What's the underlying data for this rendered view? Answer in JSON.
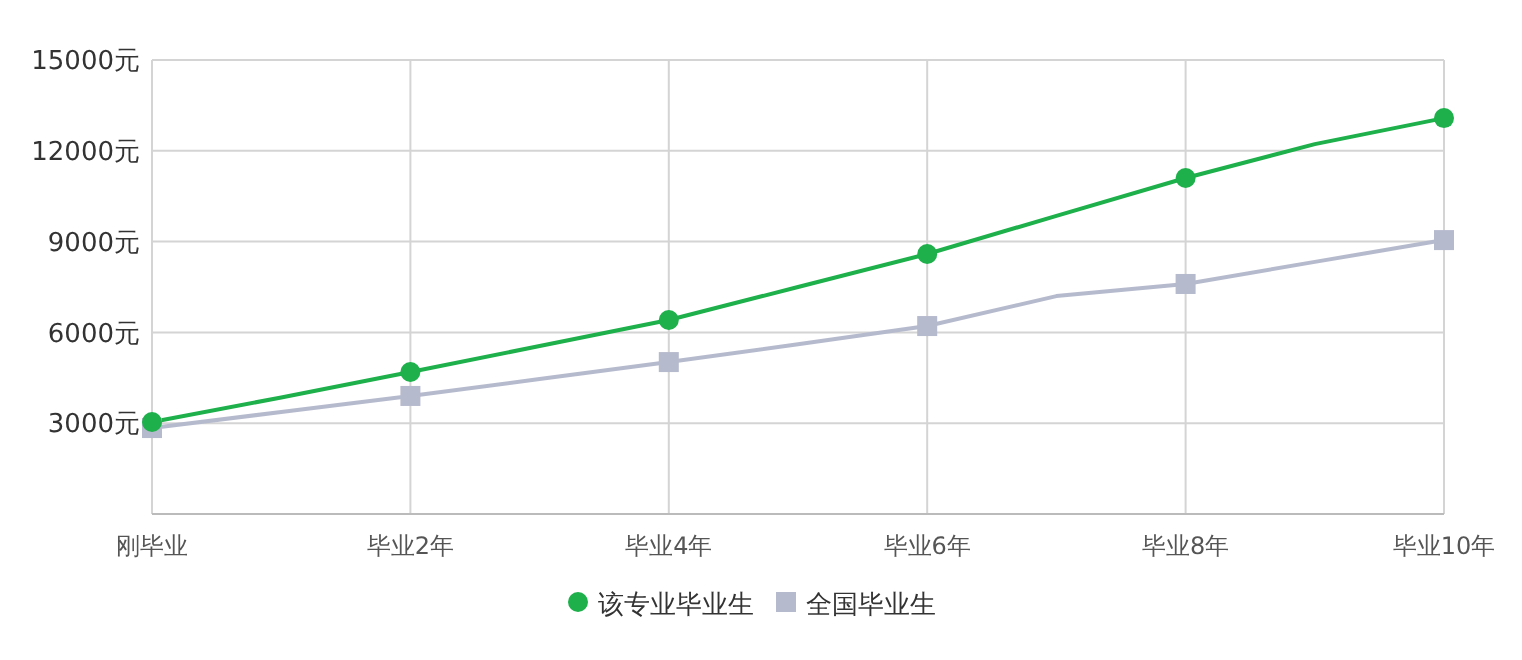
{
  "chart_data": {
    "type": "line",
    "categories": [
      "刚毕业",
      null,
      "毕业2年",
      null,
      "毕业4年",
      null,
      "毕业6年",
      null,
      "毕业8年",
      null,
      "毕业10年"
    ],
    "ylim": [
      0,
      15000
    ],
    "yticks": [
      {
        "value": 0,
        "label": null
      },
      {
        "value": 3000,
        "label": "3000元"
      },
      {
        "value": 6000,
        "label": "6000元"
      },
      {
        "value": 9000,
        "label": "9000元"
      },
      {
        "value": 12000,
        "label": "12000元"
      },
      {
        "value": 15000,
        "label": "15000元"
      }
    ],
    "grid": true,
    "legend": "bottom",
    "series": [
      {
        "name": "该专业毕业生",
        "color": "#1db04b",
        "marker": "circle",
        "values": [
          3040,
          3850,
          4690,
          5550,
          6410,
          7500,
          8590,
          9850,
          11100,
          12220,
          13080
        ]
      },
      {
        "name": "全国毕业生",
        "color": "#b6bacd",
        "marker": "square",
        "values": [
          2840,
          3370,
          3900,
          4460,
          5020,
          5610,
          6210,
          7200,
          7600,
          8330,
          9050
        ]
      }
    ]
  }
}
